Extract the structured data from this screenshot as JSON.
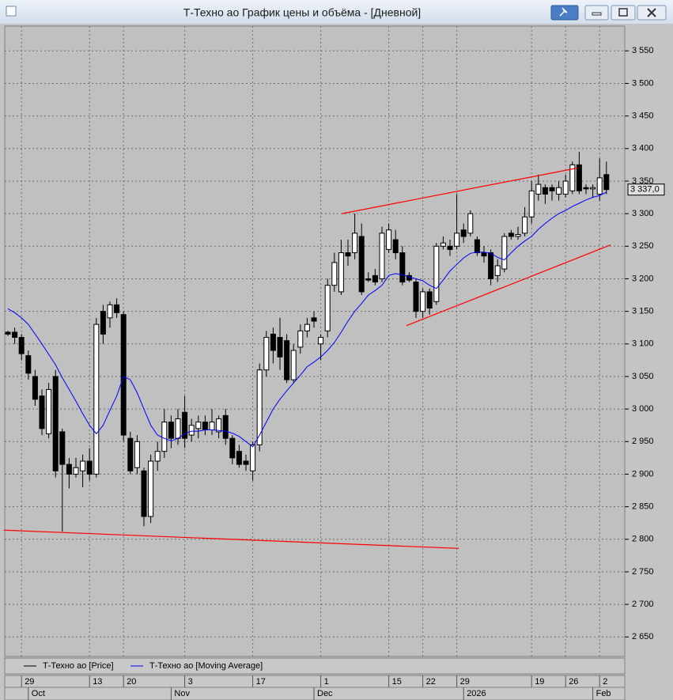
{
  "window": {
    "title": "Т-Техно ао График цены и объёма - [Дневной]"
  },
  "chart_data": {
    "type": "candlestick",
    "categories": [
      null,
      null,
      "29",
      null,
      null,
      null,
      null,
      null,
      null,
      null,
      null,
      null,
      "13",
      null,
      null,
      null,
      null,
      "20",
      null,
      null,
      null,
      null,
      null,
      null,
      null,
      null,
      "3",
      null,
      null,
      null,
      null,
      null,
      null,
      null,
      null,
      null,
      "17",
      null,
      null,
      null,
      null,
      null,
      null,
      null,
      null,
      null,
      "1",
      null,
      null,
      null,
      null,
      null,
      null,
      null,
      null,
      null,
      "15",
      null,
      null,
      null,
      null,
      "22",
      null,
      null,
      null,
      null,
      "29",
      null,
      null,
      null,
      null,
      null,
      null,
      null,
      null,
      null,
      null,
      "19",
      null,
      null,
      null,
      null,
      "26",
      null,
      null,
      null,
      null,
      "2",
      null
    ],
    "months": [
      null,
      null,
      null,
      "Oct",
      null,
      null,
      null,
      null,
      null,
      null,
      null,
      null,
      null,
      null,
      null,
      null,
      null,
      null,
      null,
      null,
      null,
      null,
      null,
      null,
      "Nov",
      null,
      null,
      null,
      null,
      null,
      null,
      null,
      null,
      null,
      null,
      null,
      null,
      null,
      null,
      null,
      null,
      null,
      null,
      null,
      null,
      "Dec",
      null,
      null,
      null,
      null,
      null,
      null,
      null,
      null,
      null,
      null,
      null,
      null,
      null,
      null,
      null,
      null,
      null,
      null,
      null,
      null,
      null,
      "2026",
      null,
      null,
      null,
      null,
      null,
      null,
      null,
      null,
      null,
      null,
      null,
      null,
      null,
      null,
      null,
      null,
      null,
      null,
      "Feb",
      null,
      null
    ],
    "series": [
      {
        "name": "Т-Техно ао [Price]",
        "color": "#000000",
        "open": [
          3118,
          3118,
          3110,
          3082,
          3050,
          3020,
          2962,
          3050,
          2965,
          2915,
          2900,
          2905,
          2920,
          2900,
          3150,
          3140,
          3160,
          3145,
          2955,
          2910,
          2905,
          2835,
          2920,
          2935,
          2980,
          2955,
          2995,
          2960,
          2970,
          2980,
          2968,
          2965,
          2990,
          2955,
          2935,
          2920,
          2905,
          2945,
          3060,
          3115,
          3110,
          3105,
          3045,
          3095,
          3120,
          3140,
          3100,
          3120,
          3190,
          3180,
          3240,
          3240,
          3265,
          3200,
          3205,
          3200,
          3245,
          3260,
          3240,
          3205,
          3195,
          3150,
          3180,
          3165,
          3250,
          3250,
          3250,
          3275,
          3270,
          3260,
          3240,
          3240,
          3205,
          3215,
          3270,
          3265,
          3270,
          3295,
          3330,
          3340,
          3340,
          3330,
          3330,
          3335,
          3375,
          3340,
          3338,
          3330,
          3360
        ],
        "high": [
          3120,
          3125,
          3115,
          3090,
          3060,
          3030,
          3040,
          3060,
          2970,
          2925,
          2925,
          2930,
          2940,
          3140,
          3160,
          3165,
          3170,
          3150,
          2965,
          2960,
          2910,
          2930,
          2950,
          3000,
          2990,
          3000,
          3020,
          2985,
          2990,
          2990,
          3000,
          2990,
          3000,
          2960,
          2945,
          2930,
          2950,
          3070,
          3120,
          3125,
          3140,
          3115,
          3100,
          3130,
          3140,
          3150,
          3115,
          3200,
          3240,
          3260,
          3260,
          3300,
          3285,
          3210,
          3215,
          3280,
          3285,
          3275,
          3250,
          3210,
          3200,
          3185,
          3185,
          3255,
          3265,
          3260,
          3330,
          3285,
          3305,
          3265,
          3250,
          3245,
          3230,
          3270,
          3275,
          3280,
          3310,
          3350,
          3360,
          3345,
          3345,
          3350,
          3360,
          3380,
          3395,
          3345,
          3345,
          3385,
          3380
        ],
        "low": [
          3112,
          3100,
          3075,
          3045,
          3005,
          2960,
          2955,
          2895,
          2812,
          2878,
          2895,
          2880,
          2890,
          2895,
          3100,
          3125,
          3140,
          2950,
          2900,
          2900,
          2820,
          2825,
          2905,
          2925,
          2940,
          2945,
          2940,
          2950,
          2955,
          2960,
          2960,
          2955,
          2945,
          2915,
          2910,
          2905,
          2890,
          2935,
          3050,
          3070,
          3060,
          3040,
          3040,
          3085,
          3110,
          3125,
          3075,
          3110,
          3180,
          3175,
          3220,
          3230,
          3175,
          3195,
          3190,
          3195,
          3240,
          3230,
          3190,
          3195,
          3140,
          3140,
          3145,
          3160,
          3245,
          3235,
          3245,
          3255,
          3265,
          3235,
          3225,
          3190,
          3195,
          3210,
          3260,
          3260,
          3265,
          3285,
          3320,
          3315,
          3320,
          3320,
          3325,
          3330,
          3330,
          3330,
          3325,
          3320,
          3330
        ],
        "close": [
          3115,
          3110,
          3085,
          3055,
          3015,
          2970,
          3030,
          2905,
          2915,
          2900,
          2910,
          2920,
          2900,
          3130,
          3115,
          3160,
          3148,
          2960,
          2905,
          2950,
          2835,
          2920,
          2935,
          2980,
          2955,
          2985,
          2955,
          2975,
          2980,
          2968,
          2980,
          2985,
          2955,
          2925,
          2915,
          2915,
          2945,
          3060,
          3110,
          3090,
          3080,
          3045,
          3090,
          3120,
          3130,
          3135,
          3110,
          3190,
          3225,
          3240,
          3235,
          3270,
          3180,
          3198,
          3195,
          3270,
          3275,
          3240,
          3195,
          3198,
          3150,
          3180,
          3155,
          3250,
          3255,
          3245,
          3270,
          3265,
          3300,
          3240,
          3235,
          3200,
          3220,
          3265,
          3265,
          3268,
          3295,
          3335,
          3345,
          3330,
          3335,
          3340,
          3350,
          3375,
          3335,
          3338,
          3340,
          3355,
          3337
        ]
      },
      {
        "name": "Т-Техно ао [Moving Average]",
        "color": "#0000ff",
        "values": [
          3154,
          3148,
          3140,
          3130,
          3115,
          3100,
          3084,
          3068,
          3048,
          3030,
          3012,
          2993,
          2975,
          2962,
          2975,
          2998,
          3020,
          3050,
          3045,
          3025,
          3000,
          2975,
          2960,
          2955,
          2951,
          2955,
          2962,
          2966,
          2966,
          2968,
          2968,
          2967,
          2966,
          2963,
          2958,
          2950,
          2942,
          2960,
          2980,
          3000,
          3015,
          3028,
          3040,
          3052,
          3065,
          3072,
          3080,
          3090,
          3102,
          3118,
          3135,
          3150,
          3162,
          3175,
          3182,
          3190,
          3205,
          3208,
          3206,
          3203,
          3200,
          3197,
          3190,
          3185,
          3198,
          3212,
          3222,
          3232,
          3239,
          3241,
          3241,
          3239,
          3233,
          3229,
          3240,
          3250,
          3258,
          3265,
          3276,
          3285,
          3293,
          3300,
          3305,
          3311,
          3316,
          3321,
          3325,
          3328,
          3333
        ]
      }
    ],
    "trendlines": [
      {
        "color": "#ff0000",
        "start": [
          -0.6,
          2814
        ],
        "end": [
          66.3,
          2786
        ]
      },
      {
        "color": "#ff0000",
        "start": [
          49.1,
          3300
        ],
        "end": [
          83.7,
          3370
        ]
      },
      {
        "color": "#ff0000",
        "start": [
          58.6,
          3128
        ],
        "end": [
          88.6,
          3252
        ]
      }
    ],
    "last_price": {
      "value": 3337,
      "label": "3 337,0"
    },
    "ylim": [
      2620,
      3588
    ],
    "yticks": [
      {
        "value": 2650,
        "label": "2 650"
      },
      {
        "value": 2700,
        "label": "2 700"
      },
      {
        "value": 2750,
        "label": "2 750"
      },
      {
        "value": 2800,
        "label": "2 800"
      },
      {
        "value": 2850,
        "label": "2 850"
      },
      {
        "value": 2900,
        "label": "2 900"
      },
      {
        "value": 2950,
        "label": "2 950"
      },
      {
        "value": 3000,
        "label": "3 000"
      },
      {
        "value": 3050,
        "label": "3 050"
      },
      {
        "value": 3100,
        "label": "3 100"
      },
      {
        "value": 3150,
        "label": "3 150"
      },
      {
        "value": 3200,
        "label": "3 200"
      },
      {
        "value": 3250,
        "label": "3 250"
      },
      {
        "value": 3300,
        "label": "3 300"
      },
      {
        "value": 3350,
        "label": "3 350"
      },
      {
        "value": 3400,
        "label": "3 400"
      },
      {
        "value": 3450,
        "label": "3 450"
      },
      {
        "value": 3500,
        "label": "3 500"
      },
      {
        "value": 3550,
        "label": "3 550"
      }
    ],
    "grid": true
  }
}
